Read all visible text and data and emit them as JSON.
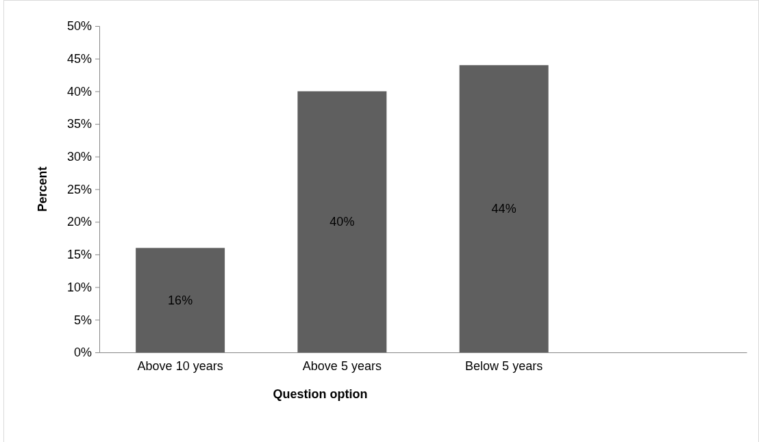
{
  "chart_data": {
    "type": "bar",
    "xlabel": "Question option",
    "ylabel": "Percent",
    "categories": [
      "Above 10 years",
      "Above 5 years",
      "Below 5 years",
      null
    ],
    "values": [
      16,
      40,
      44,
      null
    ],
    "value_labels": [
      "16%",
      "40%",
      "44%",
      null
    ],
    "color": "#5f5f5f",
    "ylim": [
      0,
      50
    ],
    "yticks": [
      {
        "value": 0,
        "label": "0%"
      },
      {
        "value": 5,
        "label": "5%"
      },
      {
        "value": 10,
        "label": "10%"
      },
      {
        "value": 15,
        "label": "15%"
      },
      {
        "value": 20,
        "label": "20%"
      },
      {
        "value": 25,
        "label": "25%"
      },
      {
        "value": 30,
        "label": "30%"
      },
      {
        "value": 35,
        "label": "35%"
      },
      {
        "value": 40,
        "label": "40%"
      },
      {
        "value": 45,
        "label": "45%"
      },
      {
        "value": 50,
        "label": "50%"
      }
    ],
    "grid": false
  }
}
